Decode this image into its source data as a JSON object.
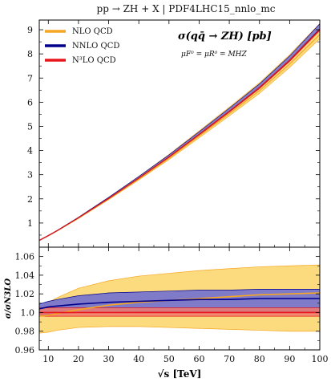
{
  "figure": {
    "title": "pp → ZH + X | PDF4LHC15_nnlo_mc"
  },
  "colors": {
    "nlo_line": "#f5a623",
    "nlo_band": "#fcd770",
    "nnlo_line": "#00008b",
    "nnlo_band": "#6a6ad6",
    "n3lo_line": "#e8161a",
    "n3lo_band": "#f07a6e"
  },
  "chart_data": [
    {
      "type": "line",
      "panel": "main",
      "title": "σ(qq̄ → ZH) [pb]",
      "annotation": "μF⁰ = μR⁰ = MHZ",
      "xlabel": "",
      "ylabel": "",
      "xlim": [
        7,
        100
      ],
      "ylim": [
        0,
        9.4
      ],
      "x_ticks": [
        10,
        20,
        30,
        40,
        50,
        60,
        70,
        80,
        90,
        100
      ],
      "y_ticks": [
        1,
        2,
        3,
        4,
        5,
        6,
        7,
        8,
        9
      ],
      "grid": false,
      "legend_position": "top-left",
      "x": [
        7,
        10,
        13,
        20,
        30,
        40,
        50,
        60,
        70,
        80,
        90,
        100
      ],
      "series": [
        {
          "name": "NLO QCD",
          "values": [
            0.28,
            0.47,
            0.68,
            1.2,
            1.99,
            2.82,
            3.68,
            4.6,
            5.53,
            6.48,
            7.58,
            8.8
          ],
          "band_rel_low": [
            0.982,
            0.984,
            0.985,
            0.987,
            0.987,
            0.986,
            0.985,
            0.984,
            0.983,
            0.982,
            0.981,
            0.98
          ],
          "band_rel_high": [
            1.01,
            1.015,
            1.02,
            1.028,
            1.035,
            1.04,
            1.043,
            1.046,
            1.048,
            1.05,
            1.051,
            1.052
          ]
        },
        {
          "name": "NNLO QCD",
          "values": [
            0.28,
            0.48,
            0.69,
            1.22,
            2.02,
            2.86,
            3.73,
            4.66,
            5.61,
            6.59,
            7.72,
            9.02
          ],
          "band_rel_low": [
            0.996,
            0.997,
            0.998,
            0.999,
            1.0,
            1.0,
            1.0,
            1.0,
            1.0,
            1.0,
            1.0,
            1.0
          ],
          "band_rel_high": [
            1.008,
            1.012,
            1.015,
            1.019,
            1.022,
            1.023,
            1.024,
            1.025,
            1.025,
            1.025,
            1.025,
            1.025
          ]
        },
        {
          "name": "N³LO QCD",
          "values": [
            0.28,
            0.48,
            0.69,
            1.22,
            2.02,
            2.86,
            3.73,
            4.66,
            5.61,
            6.59,
            7.72,
            9.0
          ],
          "band_rel_low": [
            0.996,
            0.996,
            0.996,
            0.996,
            0.996,
            0.996,
            0.996,
            0.996,
            0.996,
            0.996,
            0.996,
            0.996
          ],
          "band_rel_high": [
            1.005,
            1.005,
            1.005,
            1.005,
            1.005,
            1.005,
            1.005,
            1.005,
            1.005,
            1.005,
            1.005,
            1.005
          ]
        }
      ]
    },
    {
      "type": "line",
      "panel": "ratio",
      "title": "",
      "xlabel": "√s [TeV]",
      "ylabel": "σ/σN3LO",
      "xlim": [
        7,
        100
      ],
      "ylim": [
        0.96,
        1.07
      ],
      "x_ticks": [
        10,
        20,
        30,
        40,
        50,
        60,
        70,
        80,
        90,
        100
      ],
      "y_ticks": [
        0.96,
        0.98,
        1.0,
        1.02,
        1.04,
        1.06
      ],
      "y_tick_labels": [
        "0.96",
        "0.98",
        "1.0",
        "1.02",
        "1.04",
        "1.06"
      ],
      "grid": false,
      "x": [
        7,
        10,
        13,
        20,
        30,
        40,
        50,
        60,
        70,
        80,
        90,
        100
      ],
      "series": [
        {
          "name": "NLO QCD",
          "values": [
            0.996,
            0.997,
            0.999,
            1.003,
            1.008,
            1.011,
            1.013,
            1.015,
            1.017,
            1.019,
            1.02,
            1.021
          ],
          "band_low": [
            0.978,
            0.979,
            0.981,
            0.984,
            0.985,
            0.985,
            0.984,
            0.983,
            0.982,
            0.981,
            0.98,
            0.98
          ],
          "band_high": [
            1.006,
            1.011,
            1.016,
            1.026,
            1.034,
            1.039,
            1.042,
            1.045,
            1.047,
            1.049,
            1.05,
            1.051
          ]
        },
        {
          "name": "NNLO QCD",
          "values": [
            1.004,
            1.006,
            1.007,
            1.009,
            1.011,
            1.012,
            1.013,
            1.014,
            1.014,
            1.015,
            1.015,
            1.015
          ],
          "band_low": [
            0.997,
            0.998,
            0.999,
            1.0,
            1.0,
            1.001,
            1.001,
            1.001,
            1.001,
            1.001,
            1.001,
            1.001
          ],
          "band_high": [
            1.009,
            1.012,
            1.014,
            1.018,
            1.021,
            1.022,
            1.023,
            1.024,
            1.024,
            1.025,
            1.025,
            1.025
          ]
        },
        {
          "name": "N³LO QCD",
          "values": [
            1.0,
            1.0,
            1.0,
            1.0,
            1.0,
            1.0,
            1.0,
            1.0,
            1.0,
            1.0,
            1.0,
            1.0
          ],
          "band_low": [
            0.996,
            0.996,
            0.996,
            0.996,
            0.996,
            0.996,
            0.996,
            0.996,
            0.996,
            0.996,
            0.996,
            0.996
          ],
          "band_high": [
            1.005,
            1.005,
            1.005,
            1.005,
            1.005,
            1.005,
            1.005,
            1.005,
            1.005,
            1.005,
            1.005,
            1.005
          ]
        }
      ]
    }
  ]
}
